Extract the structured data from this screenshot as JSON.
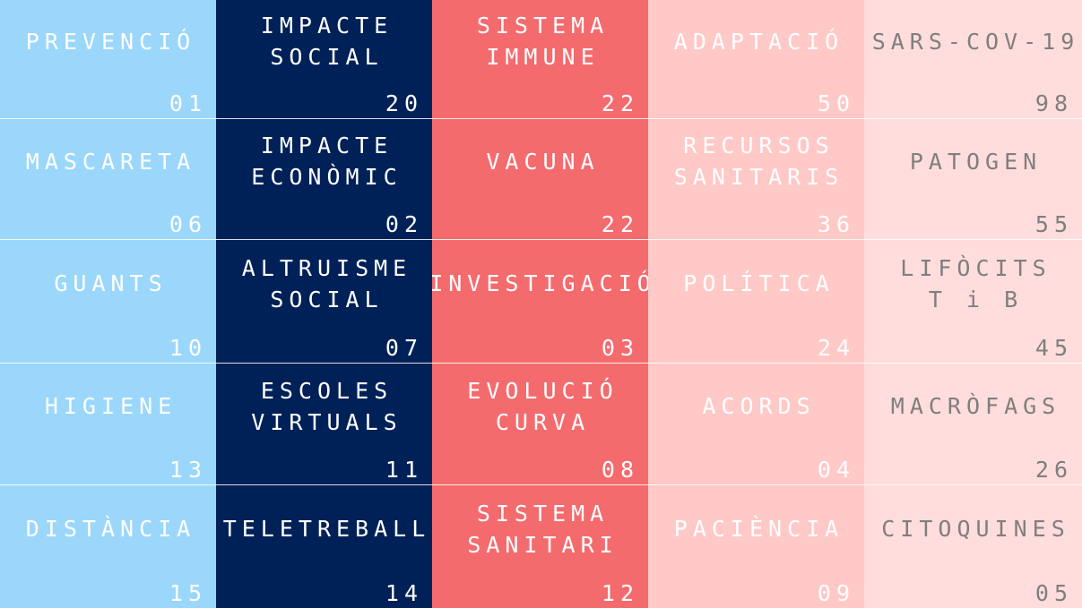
{
  "columns": [
    {
      "bg": "#9bd7fb",
      "text_color": "#ffffff",
      "cells": [
        {
          "word": "PREVENCIÓ",
          "num": "01"
        },
        {
          "word": "MASCARETA",
          "num": "06"
        },
        {
          "word": "GUANTS",
          "num": "10"
        },
        {
          "word": "HIGIENE",
          "num": "13"
        },
        {
          "word": "DISTÀNCIA",
          "num": "15"
        }
      ]
    },
    {
      "bg": "#002157",
      "text_color": "#ffffff",
      "cells": [
        {
          "word": "IMPACTE\nSOCIAL",
          "num": "20"
        },
        {
          "word": "IMPACTE\nECONÒMIC",
          "num": "02"
        },
        {
          "word": "ALTRUISME\nSOCIAL",
          "num": "07"
        },
        {
          "word": "ESCOLES\nVIRTUALS",
          "num": "11"
        },
        {
          "word": "TELETREBALL",
          "num": "14"
        }
      ]
    },
    {
      "bg": "#f46b6e",
      "text_color": "#ffffff",
      "cells": [
        {
          "word": "SISTEMA\nIMMUNE",
          "num": "22"
        },
        {
          "word": "VACUNA",
          "num": "22"
        },
        {
          "word": "INVESTIGACIÓ",
          "num": "03"
        },
        {
          "word": "EVOLUCIÓ\nCURVA",
          "num": "08"
        },
        {
          "word": "SISTEMA\nSANITARI",
          "num": "12"
        }
      ]
    },
    {
      "bg": "#ffc9c7",
      "text_color": "#ffffff",
      "cells": [
        {
          "word": "ADAPTACIÓ",
          "num": "50"
        },
        {
          "word": "RECURSOS\nSANITARIS",
          "num": "36"
        },
        {
          "word": "POLÍTICA",
          "num": "24"
        },
        {
          "word": "ACORDS",
          "num": "04"
        },
        {
          "word": "PACIÈNCIA",
          "num": "09"
        }
      ]
    },
    {
      "bg": "#ffdddc",
      "text_color": "#7f7f7f",
      "cells": [
        {
          "word": "SARS-COV-19",
          "num": "98"
        },
        {
          "word": "PATOGEN",
          "num": "55"
        },
        {
          "word": "LIFÒCITS\nT i B",
          "num": "45"
        },
        {
          "word": "MACRÒFAGS",
          "num": "26"
        },
        {
          "word": "CITOQUINES",
          "num": "05"
        }
      ]
    }
  ]
}
